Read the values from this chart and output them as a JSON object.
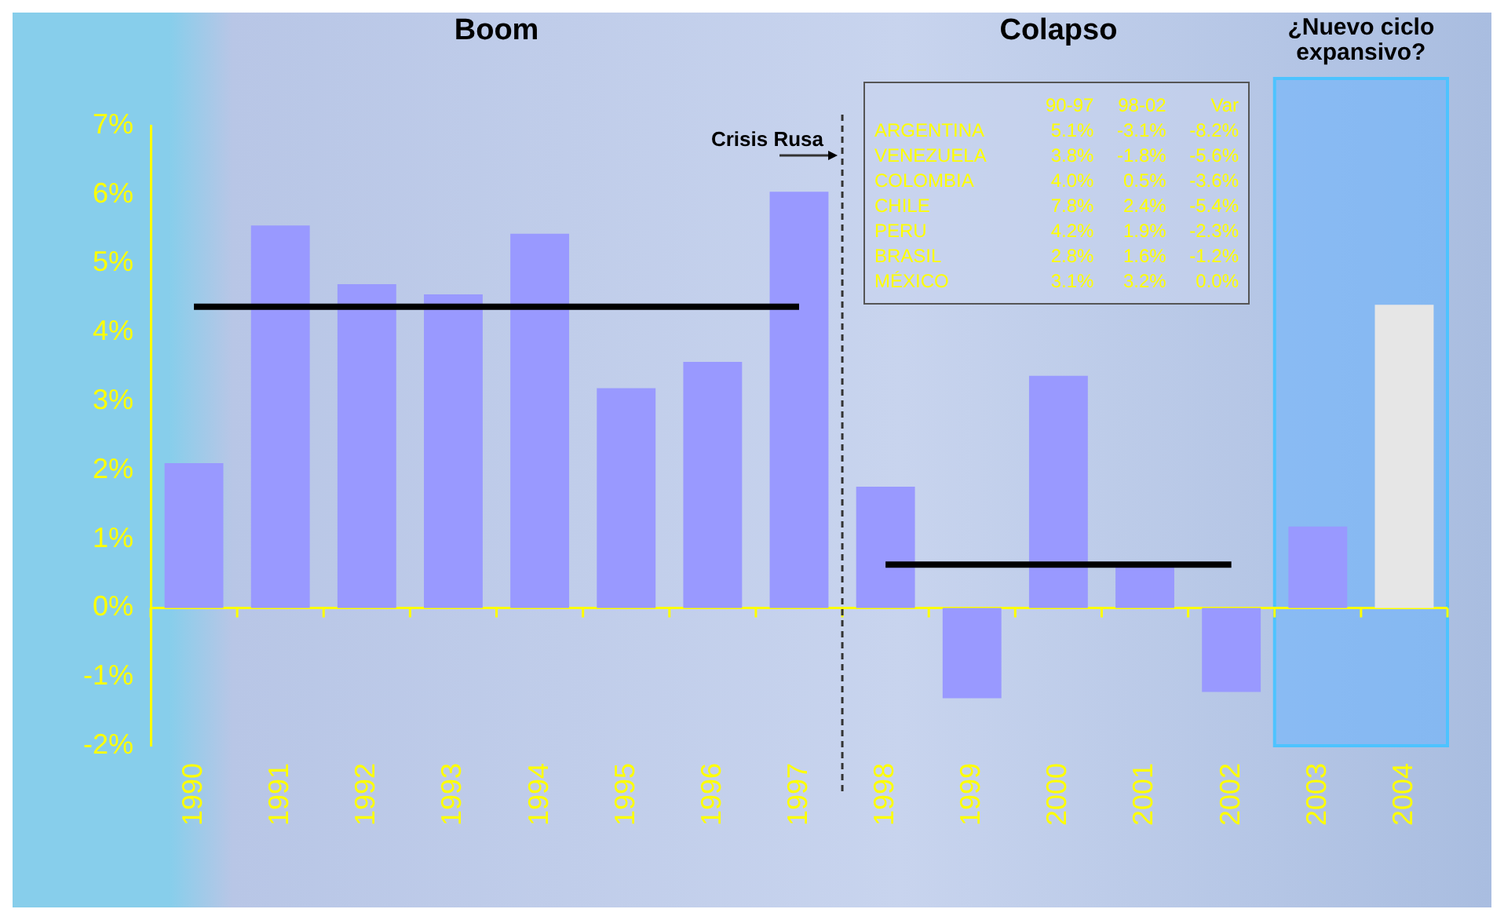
{
  "chart_data": {
    "type": "bar",
    "categories": [
      "1990",
      "1991",
      "1992",
      "1993",
      "1994",
      "1995",
      "1996",
      "1997",
      "1998",
      "1999",
      "2000",
      "2001",
      "2002",
      "2003",
      "2004"
    ],
    "series": [
      {
        "values": [
          2.1,
          5.55,
          4.7,
          4.55,
          5.43,
          3.19,
          3.57,
          6.04,
          1.76,
          -1.31,
          3.37,
          0.61,
          -1.22,
          1.18,
          4.4
        ],
        "colors": [
          "#9999ff",
          "#9999ff",
          "#9999ff",
          "#9999ff",
          "#9999ff",
          "#9999ff",
          "#9999ff",
          "#9999ff",
          "#9999ff",
          "#9999ff",
          "#9999ff",
          "#9999ff",
          "#9999ff",
          "#9999ff",
          "#e6e6e6"
        ]
      },
      {
        "type": "line",
        "color": "#000000",
        "values": [
          4.37,
          4.37,
          4.37,
          4.37,
          4.37,
          4.37,
          4.37,
          4.37,
          null,
          null,
          null,
          null,
          null,
          null,
          null
        ]
      },
      {
        "type": "line",
        "color": "#000000",
        "values": [
          null,
          null,
          null,
          null,
          null,
          null,
          null,
          null,
          0.63,
          0.63,
          0.63,
          0.63,
          0.63,
          null,
          null
        ]
      }
    ],
    "ylim": [
      -2,
      7
    ],
    "yticks": [
      {
        "value": -2,
        "label": "-2%"
      },
      {
        "value": -1,
        "label": "-1%"
      },
      {
        "value": 0,
        "label": "0%"
      },
      {
        "value": 1,
        "label": "1%"
      },
      {
        "value": 2,
        "label": "2%"
      },
      {
        "value": 3,
        "label": "3%"
      },
      {
        "value": 4,
        "label": "4%"
      },
      {
        "value": 5,
        "label": "5%"
      },
      {
        "value": 6,
        "label": "6%"
      },
      {
        "value": 7,
        "label": "7%"
      }
    ],
    "ref_lines": [
      {
        "axis": "y",
        "value": 0,
        "color": "#ffff00"
      },
      {
        "axis": "x",
        "value": "1998",
        "label": "Crisis Rusa",
        "line_style": "dashed",
        "color": "#333333"
      }
    ],
    "bands": [
      {
        "axis": "x",
        "from": "2003",
        "to": "2004",
        "label": "¿Nuevo ciclo expansivo?",
        "color": "#66b3ff"
      }
    ],
    "annotations": [
      "Boom",
      "Colapso",
      "\t90-97\t98-02\tVar",
      "ARGENTINA\t5.1%\t-3.1%\t-8.2%",
      "VENEZUELA\t3.8%\t-1.8%\t-5.6%",
      "COLOMBIA\t4.0%\t0.5%\t-3.6%",
      "CHILE\t7.8%\t2.4%\t-5.4%",
      "PERU\t4.2%\t1.9%\t-2.3%",
      "BRASIL\t2.8%\t1.6%\t-1.2%",
      "MÉXICO\t3.1%\t3.2%\t0.0%"
    ],
    "grid": false,
    "legend": false,
    "marker": "none"
  }
}
